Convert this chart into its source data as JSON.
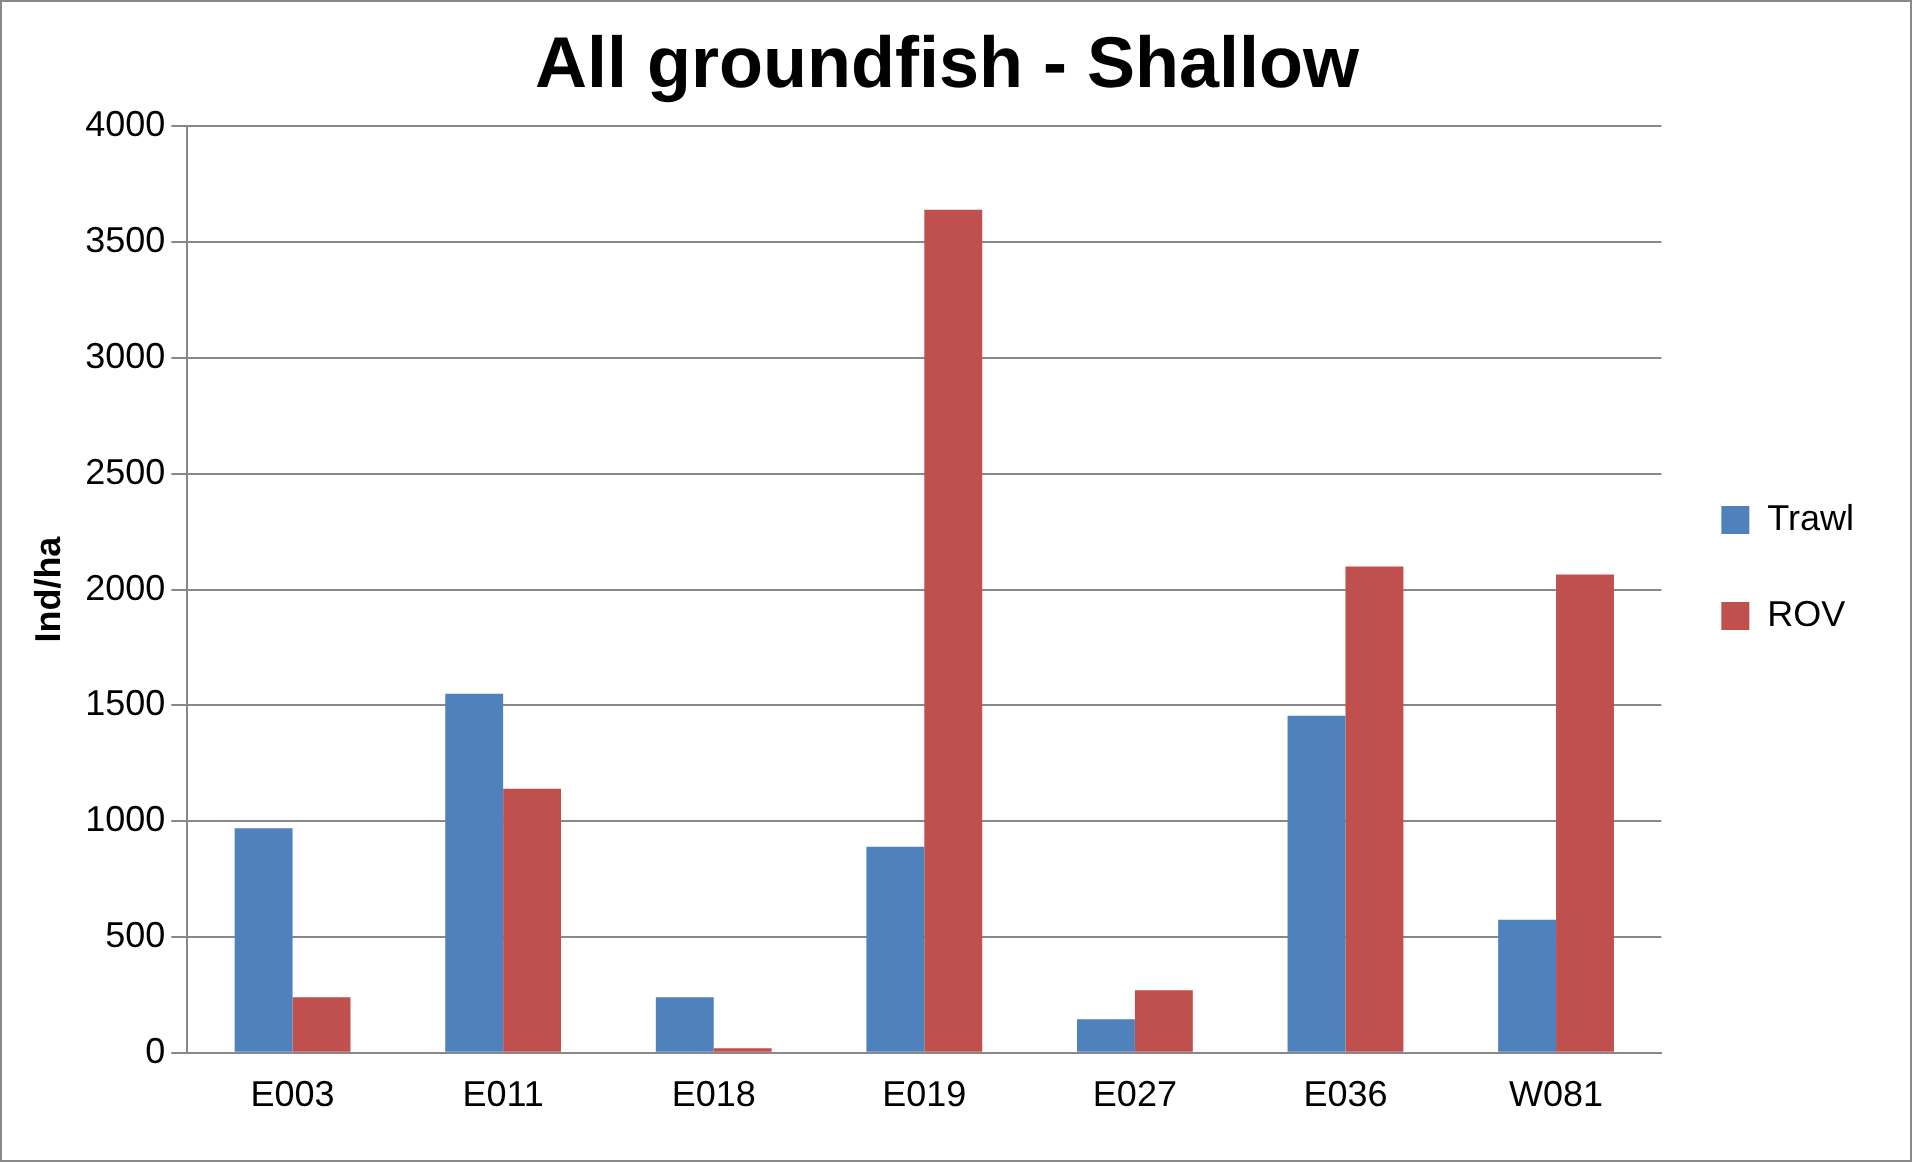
{
  "chart_data": {
    "type": "bar",
    "title": "All groundfish - Shallow",
    "ylabel": "Ind/ha",
    "categories": [
      "E003",
      "E011",
      "E018",
      "E019",
      "E027",
      "E036",
      "W081"
    ],
    "series": [
      {
        "name": "Trawl",
        "color": "#4f81bd",
        "values": [
          970,
          1550,
          240,
          890,
          145,
          1455,
          575
        ]
      },
      {
        "name": "ROV",
        "color": "#c0504d",
        "values": [
          240,
          1140,
          20,
          3640,
          270,
          2100,
          2065
        ]
      }
    ],
    "ylim": [
      0,
      4000
    ],
    "yticks": [
      0,
      500,
      1000,
      1500,
      2000,
      2500,
      3000,
      3500,
      4000
    ],
    "grid": "y",
    "legend": "right"
  }
}
